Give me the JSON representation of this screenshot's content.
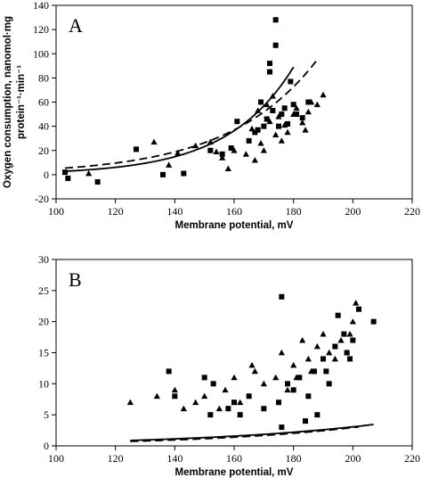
{
  "chart_data": [
    {
      "type": "scatter",
      "panel_label": "A",
      "xlabel": "Membrane potential, mV",
      "ylabel_line1": "Oxygen consumption, nanomol·mg",
      "ylabel_line2": "protein⁻¹·min⁻¹",
      "xlim": [
        100,
        220
      ],
      "ylim": [
        -20,
        140
      ],
      "xticks": [
        100,
        120,
        140,
        160,
        180,
        200,
        220
      ],
      "yticks": [
        -20,
        0,
        20,
        40,
        60,
        80,
        100,
        120,
        140
      ],
      "grid": false,
      "series": [
        {
          "marker": "square",
          "points": [
            [
              103,
              2
            ],
            [
              104,
              -3
            ],
            [
              114,
              -6
            ],
            [
              127,
              21
            ],
            [
              136,
              0
            ],
            [
              143,
              1
            ],
            [
              152,
              20
            ],
            [
              156,
              17
            ],
            [
              159,
              22
            ],
            [
              161,
              44
            ],
            [
              165,
              28
            ],
            [
              167,
              35
            ],
            [
              168,
              37
            ],
            [
              169,
              60
            ],
            [
              170,
              40
            ],
            [
              171,
              46
            ],
            [
              172,
              85
            ],
            [
              172,
              92
            ],
            [
              173,
              53
            ],
            [
              174,
              128
            ],
            [
              174,
              107
            ],
            [
              175,
              40
            ],
            [
              176,
              50
            ],
            [
              177,
              55
            ],
            [
              178,
              42
            ],
            [
              179,
              77
            ],
            [
              180,
              58
            ],
            [
              181,
              50
            ],
            [
              183,
              47
            ],
            [
              185,
              60
            ]
          ]
        },
        {
          "marker": "triangle",
          "points": [
            [
              111,
              1
            ],
            [
              133,
              27
            ],
            [
              138,
              8
            ],
            [
              141,
              18
            ],
            [
              147,
              24
            ],
            [
              152,
              27
            ],
            [
              154,
              19
            ],
            [
              156,
              14
            ],
            [
              158,
              5
            ],
            [
              160,
              20
            ],
            [
              164,
              17
            ],
            [
              166,
              38
            ],
            [
              167,
              12
            ],
            [
              168,
              53
            ],
            [
              169,
              26
            ],
            [
              170,
              20
            ],
            [
              171,
              58
            ],
            [
              172,
              44
            ],
            [
              173,
              65
            ],
            [
              174,
              33
            ],
            [
              175,
              48
            ],
            [
              176,
              28
            ],
            [
              177,
              41
            ],
            [
              178,
              35
            ],
            [
              180,
              50
            ],
            [
              181,
              55
            ],
            [
              183,
              43
            ],
            [
              184,
              37
            ],
            [
              185,
              52
            ],
            [
              186,
              60
            ],
            [
              188,
              58
            ],
            [
              190,
              66
            ]
          ]
        }
      ],
      "fits": [
        {
          "style": "solid",
          "x_range": [
            103,
            180
          ],
          "a": 2.47,
          "b": 0.0448
        },
        {
          "style": "dashed",
          "x_range": [
            103,
            188
          ],
          "a": 4.9,
          "b": 0.0337
        }
      ]
    },
    {
      "type": "scatter",
      "panel_label": "B",
      "xlabel": "Membrane potential, mV",
      "ylabel_line1": "",
      "ylabel_line2": "",
      "xlim": [
        100,
        220
      ],
      "ylim": [
        0,
        30
      ],
      "xticks": [
        100,
        120,
        140,
        160,
        180,
        200,
        220
      ],
      "yticks": [
        0,
        5,
        10,
        15,
        20,
        25,
        30
      ],
      "grid": false,
      "series": [
        {
          "marker": "square",
          "points": [
            [
              138,
              12
            ],
            [
              140,
              8
            ],
            [
              150,
              11
            ],
            [
              152,
              5
            ],
            [
              153,
              10
            ],
            [
              158,
              6
            ],
            [
              160,
              7
            ],
            [
              162,
              5
            ],
            [
              165,
              8
            ],
            [
              170,
              6
            ],
            [
              175,
              7
            ],
            [
              176,
              3
            ],
            [
              176,
              24
            ],
            [
              178,
              10
            ],
            [
              180,
              9
            ],
            [
              182,
              11
            ],
            [
              184,
              4
            ],
            [
              185,
              8
            ],
            [
              187,
              12
            ],
            [
              188,
              5
            ],
            [
              190,
              14
            ],
            [
              191,
              12
            ],
            [
              192,
              10
            ],
            [
              194,
              16
            ],
            [
              195,
              21
            ],
            [
              197,
              18
            ],
            [
              198,
              15
            ],
            [
              199,
              14
            ],
            [
              200,
              17
            ],
            [
              202,
              22
            ],
            [
              207,
              20
            ]
          ]
        },
        {
          "marker": "triangle",
          "points": [
            [
              125,
              7
            ],
            [
              134,
              8
            ],
            [
              140,
              9
            ],
            [
              143,
              6
            ],
            [
              147,
              7
            ],
            [
              150,
              8
            ],
            [
              155,
              6
            ],
            [
              157,
              9
            ],
            [
              160,
              11
            ],
            [
              162,
              7
            ],
            [
              166,
              13
            ],
            [
              167,
              12
            ],
            [
              170,
              10
            ],
            [
              174,
              11
            ],
            [
              176,
              15
            ],
            [
              178,
              9
            ],
            [
              180,
              13
            ],
            [
              181,
              11
            ],
            [
              183,
              17
            ],
            [
              185,
              14
            ],
            [
              186,
              12
            ],
            [
              188,
              16
            ],
            [
              190,
              18
            ],
            [
              192,
              15
            ],
            [
              194,
              14
            ],
            [
              196,
              17
            ],
            [
              198,
              15
            ],
            [
              199,
              18
            ],
            [
              200,
              20
            ],
            [
              201,
              23
            ]
          ]
        }
      ],
      "fits": [
        {
          "style": "solid",
          "x_range": [
            125,
            207
          ],
          "a": 0.58,
          "b": 0.01665
        },
        {
          "style": "dashed",
          "x_range": [
            125,
            202
          ],
          "a": 0.45,
          "b": 0.0188
        }
      ]
    }
  ]
}
